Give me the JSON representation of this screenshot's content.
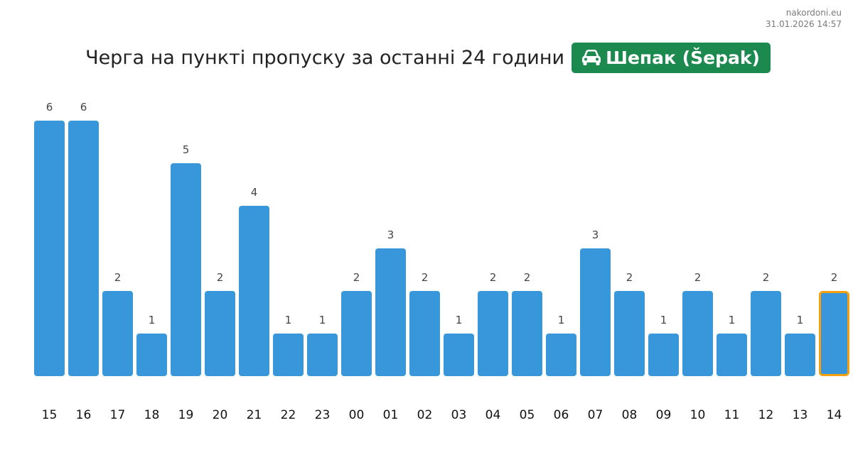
{
  "header": {
    "site": "nakordoni.eu",
    "timestamp": "31.01.2026 14:57",
    "title": "Черга на пункті пропуску за останні 24 години",
    "badge_label": "Шепак (Šepak)",
    "badge_icon": "car-icon"
  },
  "colors": {
    "bar": "#3897da",
    "highlight_outline": "#f5a00c",
    "badge": "#1c8a4f"
  },
  "chart_data": {
    "type": "bar",
    "title": "Черга на пункті пропуску за останні 24 години",
    "categories": [
      "15",
      "16",
      "17",
      "18",
      "19",
      "20",
      "21",
      "22",
      "23",
      "00",
      "01",
      "02",
      "03",
      "04",
      "05",
      "06",
      "07",
      "08",
      "09",
      "10",
      "11",
      "12",
      "13",
      "14"
    ],
    "values": [
      6,
      6,
      2,
      1,
      5,
      2,
      4,
      1,
      1,
      2,
      3,
      2,
      1,
      2,
      2,
      1,
      3,
      2,
      1,
      2,
      1,
      2,
      1,
      2
    ],
    "highlight_category": "14",
    "xlabel": "",
    "ylabel": "",
    "ylim": [
      0,
      6
    ],
    "grid": false,
    "legend": "none",
    "data_labels": true
  }
}
